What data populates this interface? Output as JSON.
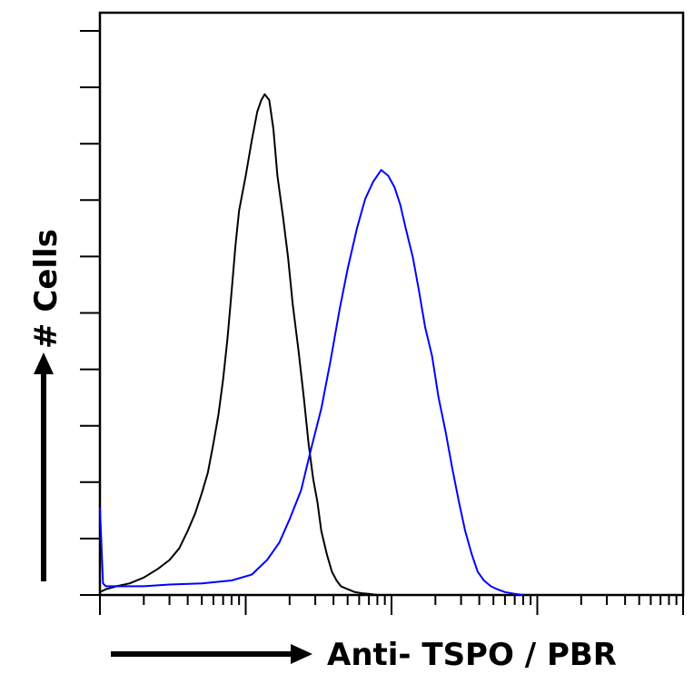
{
  "chart_data": {
    "type": "line",
    "title": "",
    "xlabel": "Anti- TSPO / PBR",
    "ylabel": "# Cells",
    "x_scale": "log",
    "xlim": [
      1,
      10000
    ],
    "ylim": [
      0,
      100
    ],
    "grid": false,
    "legend": "none",
    "series": [
      {
        "color": "#000000",
        "x": [
          1,
          1.1,
          1.3,
          1.6,
          2,
          2.5,
          3,
          3.5,
          4,
          4.5,
          5,
          5.5,
          6,
          6.5,
          7,
          7.5,
          8,
          8.5,
          9,
          10,
          11,
          12,
          12.8,
          13.5,
          14.5,
          15.5,
          16.5,
          18,
          19.5,
          21,
          23,
          25,
          27,
          29,
          31,
          33,
          36,
          39,
          42,
          45,
          50,
          56,
          63,
          70,
          80
        ],
        "y": [
          0.5,
          1,
          1.5,
          2,
          3,
          4.5,
          6,
          8,
          11,
          14,
          17.5,
          21,
          26,
          31,
          37,
          44,
          52,
          60,
          66,
          72,
          78,
          83,
          85,
          86,
          85,
          80,
          72,
          65,
          58,
          50,
          42,
          34,
          26,
          20,
          16,
          11,
          7,
          4,
          2.5,
          1.5,
          1,
          0.5,
          0.3,
          0.2,
          0
        ]
      },
      {
        "color": "#0000ff",
        "x": [
          1,
          1.05,
          1.1,
          2,
          3,
          5,
          8,
          11,
          14,
          17,
          20,
          24,
          28,
          33,
          38,
          44,
          50,
          58,
          66,
          75,
          85,
          95,
          105,
          115,
          125,
          140,
          155,
          170,
          190,
          210,
          235,
          260,
          290,
          320,
          355,
          390,
          430,
          480,
          530,
          600,
          700,
          800
        ],
        "y": [
          15,
          2,
          1.5,
          1.5,
          1.8,
          2,
          2.5,
          3.5,
          6,
          9,
          13,
          18,
          25,
          32,
          40,
          49,
          56,
          63,
          68,
          71,
          73,
          72,
          70,
          67,
          63,
          58,
          52,
          46,
          41,
          34,
          28,
          22,
          16,
          11,
          7,
          4,
          2.5,
          1.5,
          1,
          0.5,
          0.2,
          0
        ]
      }
    ]
  }
}
